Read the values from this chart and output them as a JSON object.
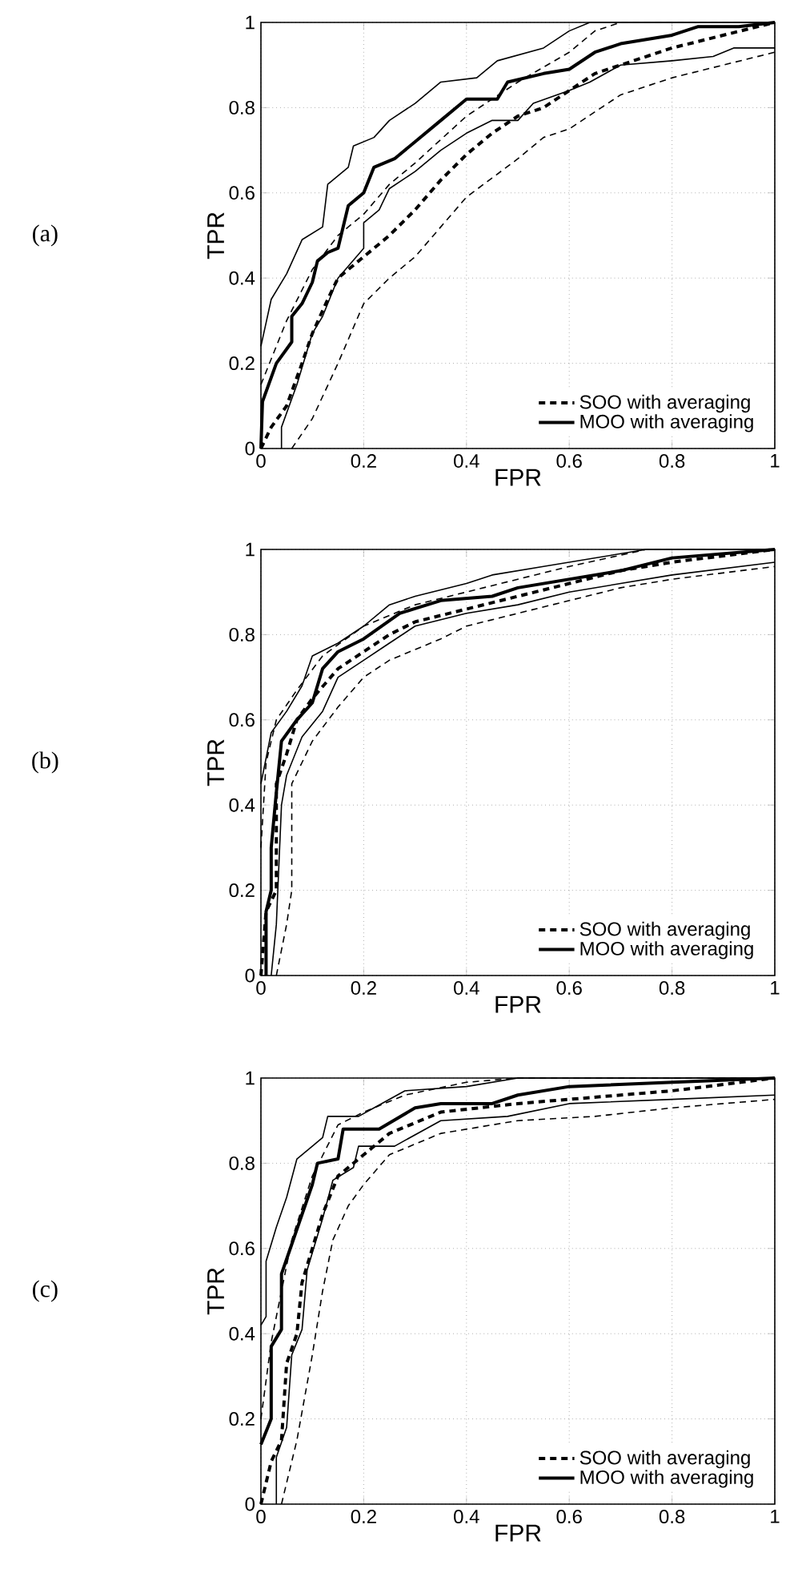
{
  "chart_data": [
    {
      "type": "line",
      "xlabel": "FPR",
      "ylabel": "TPR",
      "annotations": [
        "(a)"
      ],
      "xlim": [
        0,
        1
      ],
      "ylim": [
        0,
        1
      ],
      "xticks": [
        0,
        0.2,
        0.4,
        0.6,
        0.8,
        1
      ],
      "yticks": [
        0,
        0.2,
        0.4,
        0.6,
        0.8,
        1
      ],
      "grid": true,
      "legend": "bottom right",
      "series": [
        {
          "name": "SOO with averaging",
          "color": "#000000",
          "line_style": "dashed",
          "x": [
            0,
            0.02,
            0.05,
            0.08,
            0.1,
            0.13,
            0.15,
            0.2,
            0.25,
            0.3,
            0.35,
            0.4,
            0.45,
            0.5,
            0.55,
            0.6,
            0.65,
            0.7,
            0.8,
            0.9,
            1
          ],
          "values": [
            0,
            0.05,
            0.1,
            0.2,
            0.27,
            0.35,
            0.4,
            0.45,
            0.5,
            0.56,
            0.63,
            0.69,
            0.74,
            0.78,
            0.8,
            0.84,
            0.88,
            0.9,
            0.94,
            0.97,
            1
          ]
        },
        {
          "name": "MOO with averaging",
          "color": "#000000",
          "line_style": "solid",
          "x": [
            0,
            0.003,
            0.03,
            0.06,
            0.06,
            0.08,
            0.1,
            0.11,
            0.13,
            0.15,
            0.17,
            0.2,
            0.22,
            0.26,
            0.3,
            0.35,
            0.4,
            0.46,
            0.48,
            0.55,
            0.6,
            0.65,
            0.7,
            0.8,
            0.85,
            0.93,
            1
          ],
          "values": [
            0,
            0.11,
            0.2,
            0.25,
            0.31,
            0.34,
            0.39,
            0.44,
            0.46,
            0.47,
            0.57,
            0.6,
            0.66,
            0.68,
            0.72,
            0.77,
            0.82,
            0.82,
            0.86,
            0.88,
            0.89,
            0.93,
            0.95,
            0.97,
            0.99,
            0.99,
            1
          ]
        },
        {
          "color": "#000000",
          "line_style": "dashed",
          "x": [
            0,
            0.05,
            0.1,
            0.15,
            0.2,
            0.25,
            0.3,
            0.4,
            0.5,
            0.6,
            0.65,
            0.7,
            1
          ],
          "values": [
            0.15,
            0.3,
            0.42,
            0.5,
            0.55,
            0.62,
            0.67,
            0.78,
            0.86,
            0.93,
            0.98,
            1,
            1
          ]
        },
        {
          "color": "#000000",
          "line_style": "dashed",
          "x": [
            0.06,
            0.1,
            0.15,
            0.2,
            0.25,
            0.3,
            0.4,
            0.5,
            0.55,
            0.6,
            0.7,
            0.8,
            0.9,
            1
          ],
          "values": [
            0,
            0.07,
            0.2,
            0.34,
            0.4,
            0.45,
            0.59,
            0.68,
            0.73,
            0.75,
            0.83,
            0.87,
            0.9,
            0.93
          ]
        },
        {
          "color": "#000000",
          "line_style": "solid",
          "x": [
            0,
            0.02,
            0.05,
            0.08,
            0.12,
            0.13,
            0.17,
            0.18,
            0.22,
            0.25,
            0.3,
            0.35,
            0.42,
            0.46,
            0.55,
            0.6,
            0.64,
            1
          ],
          "values": [
            0.24,
            0.35,
            0.41,
            0.49,
            0.52,
            0.62,
            0.66,
            0.71,
            0.73,
            0.77,
            0.81,
            0.86,
            0.87,
            0.91,
            0.94,
            0.98,
            1,
            1
          ]
        },
        {
          "color": "#000000",
          "line_style": "solid",
          "x": [
            0.04,
            0.04,
            0.07,
            0.1,
            0.12,
            0.15,
            0.2,
            0.2,
            0.23,
            0.25,
            0.3,
            0.35,
            0.4,
            0.45,
            0.5,
            0.53,
            0.6,
            0.64,
            0.7,
            0.8,
            0.88,
            0.92,
            1
          ],
          "values": [
            0,
            0.05,
            0.15,
            0.27,
            0.31,
            0.4,
            0.47,
            0.53,
            0.56,
            0.61,
            0.65,
            0.7,
            0.74,
            0.77,
            0.77,
            0.81,
            0.84,
            0.86,
            0.9,
            0.91,
            0.92,
            0.94,
            0.94
          ]
        }
      ]
    },
    {
      "type": "line",
      "xlabel": "FPR",
      "ylabel": "TPR",
      "annotations": [
        "(b)"
      ],
      "xlim": [
        0,
        1
      ],
      "ylim": [
        0,
        1
      ],
      "xticks": [
        0,
        0.2,
        0.4,
        0.6,
        0.8,
        1
      ],
      "yticks": [
        0,
        0.2,
        0.4,
        0.6,
        0.8,
        1
      ],
      "grid": true,
      "legend": "bottom right",
      "series": [
        {
          "name": "SOO with averaging",
          "color": "#000000",
          "line_style": "dashed",
          "x": [
            0,
            0.01,
            0.03,
            0.03,
            0.05,
            0.07,
            0.1,
            0.15,
            0.2,
            0.25,
            0.3,
            0.4,
            0.5,
            0.6,
            0.7,
            0.8,
            1
          ],
          "values": [
            0,
            0.15,
            0.2,
            0.45,
            0.52,
            0.6,
            0.65,
            0.72,
            0.76,
            0.8,
            0.83,
            0.86,
            0.89,
            0.92,
            0.95,
            0.97,
            1
          ]
        },
        {
          "name": "MOO with averaging",
          "color": "#000000",
          "line_style": "solid",
          "x": [
            0.01,
            0.01,
            0.02,
            0.02,
            0.03,
            0.04,
            0.07,
            0.1,
            0.12,
            0.15,
            0.2,
            0.27,
            0.35,
            0.45,
            0.5,
            0.6,
            0.7,
            0.8,
            1
          ],
          "values": [
            0,
            0.15,
            0.2,
            0.3,
            0.43,
            0.55,
            0.6,
            0.64,
            0.72,
            0.76,
            0.79,
            0.85,
            0.88,
            0.89,
            0.91,
            0.93,
            0.95,
            0.98,
            1
          ]
        },
        {
          "color": "#000000",
          "line_style": "dashed",
          "x": [
            0,
            0.01,
            0.03,
            0.07,
            0.12,
            0.2,
            0.3,
            0.4,
            0.5,
            0.6,
            0.75,
            1
          ],
          "values": [
            0.3,
            0.5,
            0.6,
            0.67,
            0.75,
            0.82,
            0.87,
            0.9,
            0.93,
            0.96,
            1,
            1
          ]
        },
        {
          "color": "#000000",
          "line_style": "dashed",
          "x": [
            0.03,
            0.05,
            0.06,
            0.06,
            0.08,
            0.1,
            0.15,
            0.2,
            0.25,
            0.35,
            0.4,
            0.5,
            0.6,
            0.7,
            0.8,
            1
          ],
          "values": [
            0,
            0.12,
            0.2,
            0.45,
            0.5,
            0.55,
            0.63,
            0.7,
            0.74,
            0.79,
            0.82,
            0.85,
            0.88,
            0.91,
            0.93,
            0.96
          ]
        },
        {
          "color": "#000000",
          "line_style": "solid",
          "x": [
            0,
            0.02,
            0.05,
            0.08,
            0.1,
            0.15,
            0.2,
            0.25,
            0.3,
            0.4,
            0.45,
            0.55,
            0.65,
            0.75,
            1
          ],
          "values": [
            0.45,
            0.57,
            0.62,
            0.68,
            0.75,
            0.78,
            0.82,
            0.87,
            0.89,
            0.92,
            0.94,
            0.96,
            0.98,
            1,
            1
          ]
        },
        {
          "color": "#000000",
          "line_style": "solid",
          "x": [
            0.02,
            0.03,
            0.04,
            0.05,
            0.08,
            0.12,
            0.15,
            0.2,
            0.25,
            0.3,
            0.4,
            0.5,
            0.6,
            0.7,
            0.8,
            1
          ],
          "values": [
            0,
            0.12,
            0.4,
            0.47,
            0.56,
            0.62,
            0.7,
            0.74,
            0.78,
            0.82,
            0.85,
            0.87,
            0.9,
            0.92,
            0.94,
            0.97
          ]
        }
      ]
    },
    {
      "type": "line",
      "xlabel": "FPR",
      "ylabel": "TPR",
      "annotations": [
        "(c)"
      ],
      "xlim": [
        0,
        1
      ],
      "ylim": [
        0,
        1
      ],
      "xticks": [
        0,
        0.2,
        0.4,
        0.6,
        0.8,
        1
      ],
      "yticks": [
        0,
        0.2,
        0.4,
        0.6,
        0.8,
        1
      ],
      "grid": true,
      "legend": "bottom right",
      "series": [
        {
          "name": "SOO with averaging",
          "color": "#000000",
          "line_style": "dashed",
          "x": [
            0,
            0.02,
            0.04,
            0.05,
            0.07,
            0.08,
            0.1,
            0.12,
            0.15,
            0.2,
            0.25,
            0.35,
            0.5,
            0.6,
            0.8,
            1
          ],
          "values": [
            0,
            0.1,
            0.15,
            0.33,
            0.4,
            0.52,
            0.6,
            0.68,
            0.77,
            0.82,
            0.87,
            0.92,
            0.94,
            0.95,
            0.97,
            1
          ]
        },
        {
          "name": "MOO with averaging",
          "color": "#000000",
          "line_style": "solid",
          "x": [
            0,
            0.02,
            0.02,
            0.04,
            0.04,
            0.06,
            0.08,
            0.1,
            0.11,
            0.15,
            0.16,
            0.2,
            0.23,
            0.3,
            0.35,
            0.45,
            0.5,
            0.6,
            0.8,
            1
          ],
          "values": [
            0.14,
            0.2,
            0.37,
            0.41,
            0.54,
            0.61,
            0.68,
            0.75,
            0.8,
            0.81,
            0.88,
            0.88,
            0.88,
            0.93,
            0.94,
            0.94,
            0.96,
            0.98,
            0.99,
            1
          ]
        },
        {
          "color": "#000000",
          "line_style": "dashed",
          "x": [
            0,
            0.02,
            0.04,
            0.06,
            0.1,
            0.15,
            0.2,
            0.28,
            0.4,
            0.5,
            1
          ],
          "values": [
            0.2,
            0.38,
            0.5,
            0.62,
            0.77,
            0.89,
            0.92,
            0.96,
            0.99,
            1,
            1
          ]
        },
        {
          "color": "#000000",
          "line_style": "dashed",
          "x": [
            0.04,
            0.07,
            0.1,
            0.12,
            0.14,
            0.17,
            0.2,
            0.25,
            0.35,
            0.5,
            0.65,
            0.8,
            1
          ],
          "values": [
            0,
            0.15,
            0.35,
            0.5,
            0.62,
            0.7,
            0.75,
            0.82,
            0.87,
            0.9,
            0.91,
            0.93,
            0.95
          ]
        },
        {
          "color": "#000000",
          "line_style": "solid",
          "x": [
            0,
            0.01,
            0.01,
            0.03,
            0.05,
            0.07,
            0.1,
            0.12,
            0.13,
            0.19,
            0.22,
            0.28,
            0.4,
            0.5,
            1
          ],
          "values": [
            0.42,
            0.44,
            0.57,
            0.65,
            0.72,
            0.81,
            0.84,
            0.86,
            0.91,
            0.91,
            0.93,
            0.97,
            0.98,
            1,
            1
          ]
        },
        {
          "color": "#000000",
          "line_style": "solid",
          "x": [
            0.03,
            0.03,
            0.05,
            0.06,
            0.08,
            0.09,
            0.12,
            0.14,
            0.18,
            0.19,
            0.26,
            0.35,
            0.48,
            0.6,
            0.8,
            1
          ],
          "values": [
            0,
            0.11,
            0.18,
            0.35,
            0.41,
            0.55,
            0.67,
            0.76,
            0.79,
            0.84,
            0.84,
            0.9,
            0.91,
            0.94,
            0.95,
            0.96
          ]
        }
      ]
    }
  ]
}
